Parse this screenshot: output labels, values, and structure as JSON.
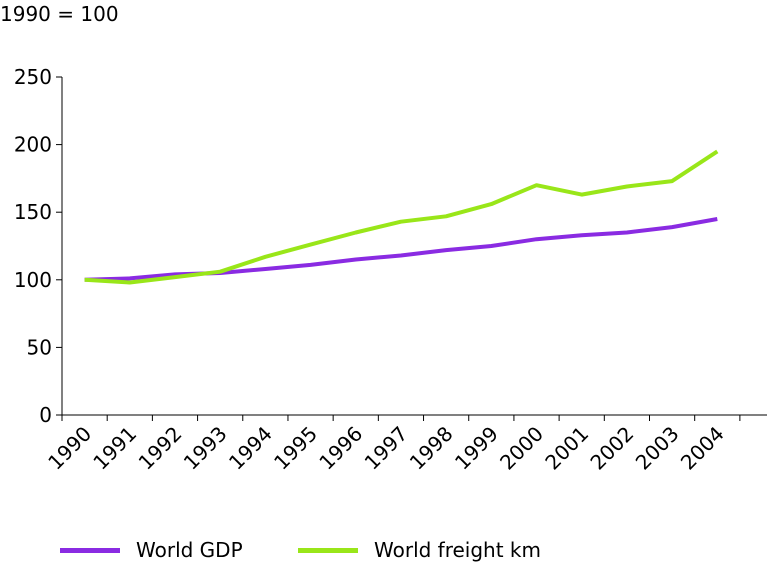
{
  "chart_data": {
    "type": "line",
    "title": "",
    "ylabel": "1990 = 100",
    "xlabel": "",
    "categories": [
      "1990",
      "1991",
      "1992",
      "1993",
      "1994",
      "1995",
      "1996",
      "1997",
      "1998",
      "1999",
      "2000",
      "2001",
      "2002",
      "2003",
      "2004"
    ],
    "ylim": [
      0,
      250
    ],
    "yticks": [
      0,
      50,
      100,
      150,
      200,
      250
    ],
    "grid": false,
    "legend_position": "bottom",
    "series": [
      {
        "name": "World GDP",
        "color": "#8a2be2",
        "values": [
          100,
          101,
          104,
          105,
          108,
          111,
          115,
          118,
          122,
          125,
          130,
          133,
          135,
          139,
          145
        ]
      },
      {
        "name": "World freight km",
        "color": "#99e619",
        "values": [
          100,
          98,
          102,
          106,
          117,
          126,
          135,
          143,
          147,
          156,
          170,
          163,
          169,
          173,
          195
        ]
      }
    ]
  }
}
